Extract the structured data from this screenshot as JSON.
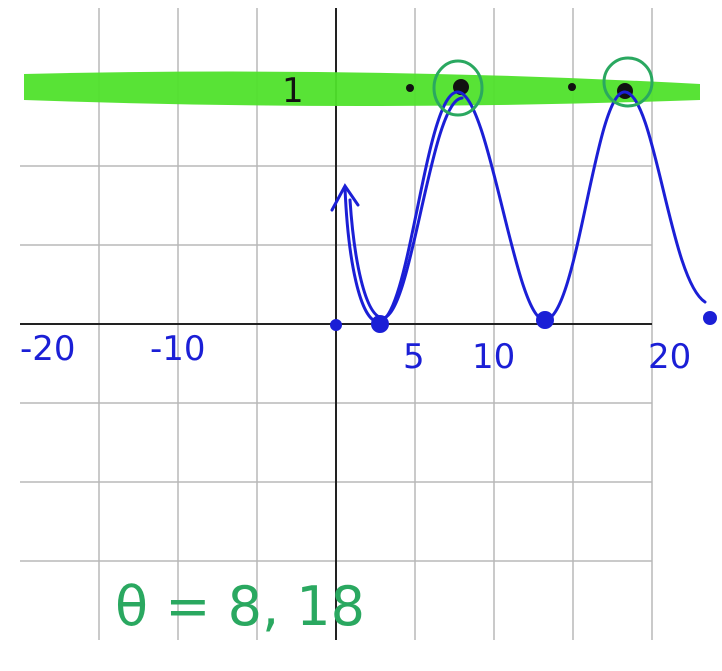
{
  "graph": {
    "y_label": "1",
    "x_labels": [
      "-20",
      "-10",
      "5",
      "10",
      "20"
    ],
    "answer": "θ = 8, 18"
  }
}
